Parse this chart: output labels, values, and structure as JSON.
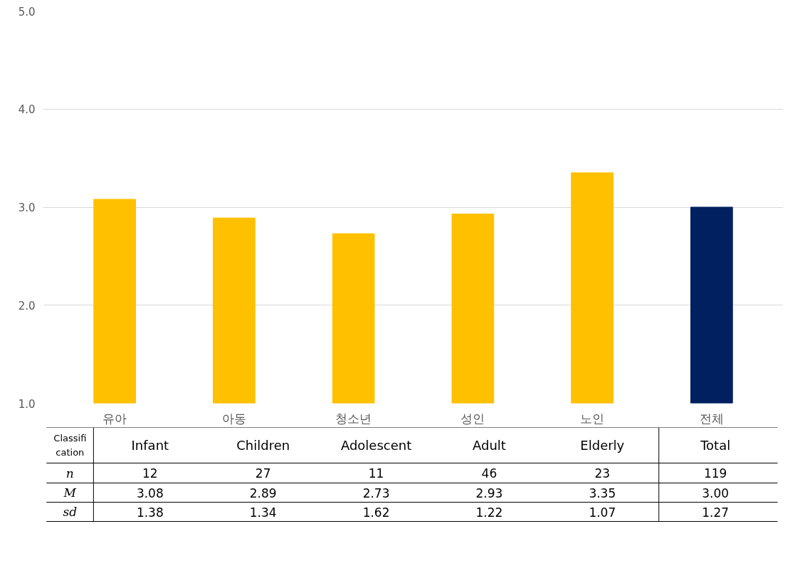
{
  "chart_data": {
    "type": "bar",
    "categories": [
      "유아",
      "아동",
      "청소년",
      "성인",
      "노인",
      "전체"
    ],
    "values": [
      3.08,
      2.89,
      2.73,
      2.93,
      3.35,
      3.0
    ],
    "colors": [
      "#ffc000",
      "#ffc000",
      "#ffc000",
      "#ffc000",
      "#ffc000",
      "#002060"
    ],
    "value_labels": [
      "3.08",
      "2.89",
      "2.73",
      "2.93",
      "3.35",
      "3.00"
    ],
    "ylim": [
      1,
      5
    ],
    "yticks": [
      {
        "value": 1,
        "label": "1.0"
      },
      {
        "value": 2,
        "label": "2.0"
      },
      {
        "value": 3,
        "label": "3.0"
      },
      {
        "value": 4,
        "label": "4.0"
      },
      {
        "value": 5,
        "label": "5.0"
      }
    ],
    "grid": "y",
    "annotations": [
      "Classifi cation",
      "Infant",
      "Children",
      "Adolescent",
      "Adult",
      "Elderly",
      "Total",
      "n",
      "12",
      "27",
      "11",
      "46",
      "23",
      "119",
      "M",
      "sd",
      "1.38",
      "1.34",
      "1.62",
      "1.22",
      "1.07",
      "1.27"
    ]
  }
}
